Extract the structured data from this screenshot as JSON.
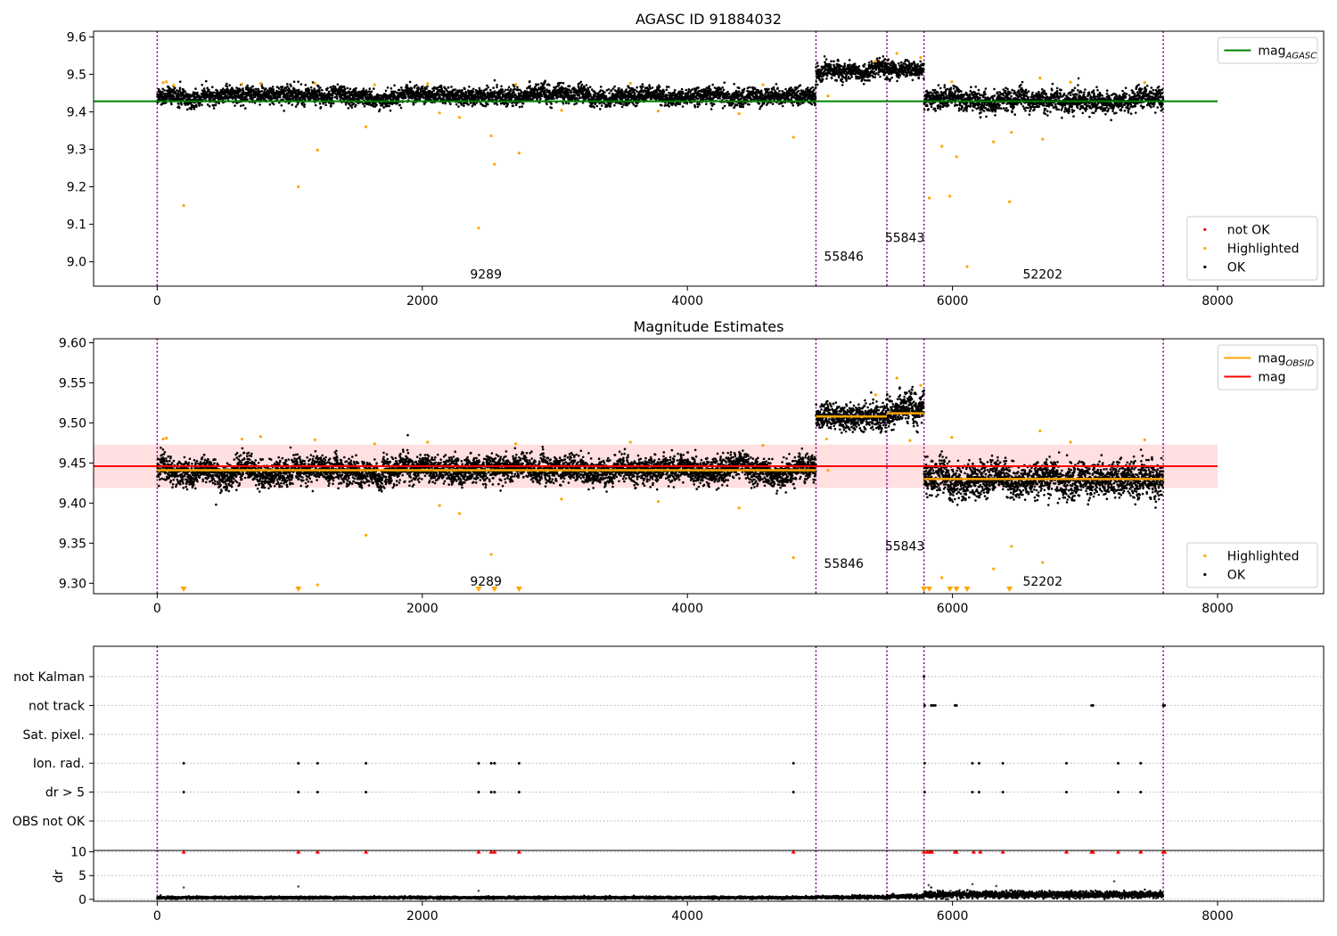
{
  "figure": {
    "background": "#ffffff"
  },
  "colors": {
    "ok": "#000000",
    "highlighted": "#ffa500",
    "not_ok": "#ff0000",
    "agasc_line": "#008000",
    "mag_line": "#ff0000",
    "mag_band": "#ffdfe0",
    "obsid_line": "#ffa500",
    "boundary": "#800080"
  },
  "chart_data": [
    {
      "type": "scatter",
      "title": "AGASC ID 91884032",
      "xlim": [
        -480,
        8800
      ],
      "ylim": [
        8.935,
        9.615
      ],
      "xticks": [
        0,
        2000,
        4000,
        6000,
        8000
      ],
      "xtick_labels": [
        "0",
        "2000",
        "4000",
        "6000",
        "8000"
      ],
      "yticks": [
        9.0,
        9.1,
        9.2,
        9.3,
        9.4,
        9.5,
        9.6
      ],
      "ytick_labels": [
        "9.0",
        "9.1",
        "9.2",
        "9.3",
        "9.4",
        "9.5",
        "9.6"
      ],
      "obsid_boundaries": [
        0,
        4970,
        5505,
        5785,
        7590
      ],
      "obsid_labels": [
        {
          "text": "9289",
          "x": 2480,
          "y": 8.955
        },
        {
          "text": "55846",
          "x": 5180,
          "y": 9.003
        },
        {
          "text": "55843",
          "x": 5640,
          "y": 9.053
        },
        {
          "text": "52202",
          "x": 6680,
          "y": 8.955
        }
      ],
      "hlines": [
        {
          "name": "mag_AGASC",
          "y": 9.428,
          "x": [
            -480,
            8000
          ],
          "color": "#008000"
        }
      ],
      "legend_upper": {
        "placement": "top-right",
        "entries": [
          {
            "label": "mag",
            "sub": "AGASC",
            "color": "#008000",
            "kind": "line"
          }
        ]
      },
      "legend_lower": {
        "placement": "bottom-right",
        "entries": [
          {
            "label": "not OK",
            "color": "#ff0000",
            "kind": "dot"
          },
          {
            "label": "Highlighted",
            "color": "#ffa500",
            "kind": "dot"
          },
          {
            "label": "OK",
            "color": "#000000",
            "kind": "dot"
          }
        ]
      },
      "segments": [
        {
          "x": [
            0,
            4970
          ],
          "center": 9.442,
          "spread": 0.014
        },
        {
          "x": [
            4970,
            5505
          ],
          "center": 9.51,
          "spread": 0.014
        },
        {
          "x": [
            5505,
            5785
          ],
          "center": 9.515,
          "spread": 0.015
        },
        {
          "x": [
            5785,
            7590
          ],
          "center": 9.428,
          "spread": 0.017
        }
      ],
      "highlighted_points": [
        [
          200,
          9.15
        ],
        [
          1065,
          9.2
        ],
        [
          1210,
          9.298
        ],
        [
          1575,
          9.36
        ],
        [
          2425,
          9.09
        ],
        [
          2520,
          9.336
        ],
        [
          2545,
          9.26
        ],
        [
          2730,
          9.29
        ],
        [
          4800,
          9.332
        ],
        [
          5825,
          9.17
        ],
        [
          5920,
          9.308
        ],
        [
          5980,
          9.175
        ],
        [
          6030,
          9.28
        ],
        [
          6110,
          8.987
        ],
        [
          6310,
          9.32
        ],
        [
          6430,
          9.16
        ],
        [
          6445,
          9.345
        ],
        [
          6680,
          9.327
        ],
        [
          2130,
          9.397
        ],
        [
          2280,
          9.385
        ],
        [
          3050,
          9.404
        ],
        [
          3780,
          9.402
        ],
        [
          4390,
          9.395
        ],
        [
          5060,
          9.442
        ],
        [
          5995,
          9.48
        ],
        [
          6660,
          9.49
        ],
        [
          45,
          9.478
        ],
        [
          70,
          9.48
        ],
        [
          125,
          9.471
        ],
        [
          640,
          9.474
        ],
        [
          780,
          9.476
        ],
        [
          1190,
          9.476
        ],
        [
          1640,
          9.472
        ],
        [
          2040,
          9.475
        ],
        [
          2705,
          9.473
        ],
        [
          3570,
          9.476
        ],
        [
          4570,
          9.472
        ],
        [
          6890,
          9.479
        ],
        [
          7450,
          9.478
        ],
        [
          5580,
          9.556
        ],
        [
          5420,
          9.535
        ],
        [
          5760,
          9.545
        ]
      ]
    },
    {
      "type": "scatter",
      "title": "Magnitude Estimates",
      "xlim": [
        -480,
        8800
      ],
      "ylim": [
        9.287,
        9.605
      ],
      "xticks": [
        0,
        2000,
        4000,
        6000,
        8000
      ],
      "xtick_labels": [
        "0",
        "2000",
        "4000",
        "6000",
        "8000"
      ],
      "yticks": [
        9.3,
        9.35,
        9.4,
        9.45,
        9.5,
        9.55,
        9.6
      ],
      "ytick_labels": [
        "9.30",
        "9.35",
        "9.40",
        "9.45",
        "9.50",
        "9.55",
        "9.60"
      ],
      "obsid_boundaries": [
        0,
        4970,
        5505,
        5785,
        7590
      ],
      "obsid_labels": [
        {
          "text": "9289",
          "x": 2480,
          "y": 9.297
        },
        {
          "text": "55846",
          "x": 5180,
          "y": 9.319
        },
        {
          "text": "55843",
          "x": 5640,
          "y": 9.341
        },
        {
          "text": "52202",
          "x": 6680,
          "y": 9.297
        }
      ],
      "mag": {
        "value": 9.446,
        "band": [
          9.419,
          9.473
        ],
        "x": [
          -480,
          8000
        ]
      },
      "obsid_mags": [
        {
          "x": [
            0,
            4970
          ],
          "value": 9.441
        },
        {
          "x": [
            4970,
            5505
          ],
          "value": 9.508
        },
        {
          "x": [
            5505,
            5785
          ],
          "value": 9.512
        },
        {
          "x": [
            5785,
            7590
          ],
          "value": 9.43
        }
      ],
      "legend_upper": {
        "placement": "top-right",
        "entries": [
          {
            "label": "mag",
            "sub": "OBSID",
            "color": "#ffa500",
            "kind": "line"
          },
          {
            "label": "mag",
            "sub": "",
            "color": "#ff0000",
            "kind": "line"
          }
        ]
      },
      "legend_lower": {
        "placement": "bottom-right",
        "entries": [
          {
            "label": "Highlighted",
            "color": "#ffa500",
            "kind": "dot"
          },
          {
            "label": "OK",
            "color": "#000000",
            "kind": "dot"
          }
        ]
      },
      "segments": [
        {
          "x": [
            0,
            4970
          ],
          "center": 9.441,
          "spread": 0.01
        },
        {
          "x": [
            4970,
            5505
          ],
          "center": 9.508,
          "spread": 0.01
        },
        {
          "x": [
            5505,
            5785
          ],
          "center": 9.513,
          "spread": 0.011
        },
        {
          "x": [
            5785,
            7590
          ],
          "center": 9.43,
          "spread": 0.013
        }
      ],
      "highlighted_points": [
        [
          1210,
          9.298
        ],
        [
          1575,
          9.36
        ],
        [
          2520,
          9.336
        ],
        [
          4800,
          9.332
        ],
        [
          5920,
          9.307
        ],
        [
          6310,
          9.318
        ],
        [
          6445,
          9.346
        ],
        [
          6680,
          9.326
        ],
        [
          2130,
          9.397
        ],
        [
          2280,
          9.387
        ],
        [
          3050,
          9.405
        ],
        [
          3780,
          9.402
        ],
        [
          4390,
          9.394
        ],
        [
          5060,
          9.441
        ],
        [
          5995,
          9.482
        ],
        [
          6660,
          9.49
        ],
        [
          45,
          9.48
        ],
        [
          70,
          9.481
        ],
        [
          640,
          9.48
        ],
        [
          780,
          9.483
        ],
        [
          1190,
          9.479
        ],
        [
          1640,
          9.474
        ],
        [
          2040,
          9.476
        ],
        [
          2705,
          9.474
        ],
        [
          3570,
          9.476
        ],
        [
          4570,
          9.472
        ],
        [
          6890,
          9.476
        ],
        [
          7450,
          9.479
        ],
        [
          5580,
          9.556
        ],
        [
          5420,
          9.535
        ],
        [
          5760,
          9.547
        ],
        [
          5050,
          9.48
        ],
        [
          5680,
          9.478
        ]
      ],
      "clipped_low_points": [
        200,
        1065,
        2425,
        2545,
        2730,
        5785,
        5825,
        5980,
        6030,
        6110,
        6430
      ]
    },
    {
      "type": "scatter",
      "title": "",
      "xlim": [
        -480,
        8800
      ],
      "categories": [
        "not Kalman",
        "not track",
        "Sat. pixel.",
        "Ion. rad.",
        "dr > 5",
        "OBS not OK"
      ],
      "flags": {
        "not Kalman": [
          5785
        ],
        "not track": [
          5790,
          5840,
          5855,
          5870,
          6020,
          6030,
          7050,
          7060,
          7590,
          7595,
          7600
        ],
        "Sat. pixel.": [],
        "Ion. rad.": [
          200,
          1065,
          1210,
          1575,
          2425,
          2520,
          2545,
          2730,
          4800,
          5790,
          6150,
          6200,
          6380,
          6860,
          7250,
          7420
        ],
        "dr > 5": [
          200,
          1065,
          1210,
          1575,
          2425,
          2520,
          2545,
          2730,
          4800,
          5790,
          6150,
          6200,
          6380,
          6860,
          7250,
          7420
        ],
        "OBS not OK": []
      }
    },
    {
      "type": "scatter",
      "title": "",
      "xlim": [
        -480,
        8800
      ],
      "ylim": [
        -0.4,
        10.3
      ],
      "ylabel": "dr",
      "xticks": [
        0,
        2000,
        4000,
        6000,
        8000
      ],
      "xtick_labels": [
        "0",
        "2000",
        "4000",
        "6000",
        "8000"
      ],
      "yticks": [
        0,
        5,
        10
      ],
      "ytick_labels": [
        "0",
        "5",
        "10"
      ],
      "clipped_high_points": [
        200,
        1065,
        1210,
        1575,
        2425,
        2520,
        2545,
        4800,
        2730,
        5785,
        5810,
        5830,
        5845,
        6020,
        6030,
        6160,
        6210,
        6380,
        6860,
        7050,
        7060,
        7250,
        7420,
        7590,
        7600
      ],
      "outlier_points": [
        [
          200,
          2.5
        ],
        [
          1065,
          2.7
        ],
        [
          2425,
          1.8
        ],
        [
          5820,
          3.0
        ],
        [
          6150,
          3.2
        ],
        [
          6330,
          2.8
        ],
        [
          7220,
          3.8
        ],
        [
          5985,
          1.8
        ]
      ],
      "segments": [
        {
          "x": [
            0,
            4970
          ],
          "center": 0.35,
          "spread": 0.12
        },
        {
          "x": [
            4970,
            5505
          ],
          "center": 0.45,
          "spread": 0.15
        },
        {
          "x": [
            5505,
            5785
          ],
          "center": 0.6,
          "spread": 0.2
        },
        {
          "x": [
            5785,
            7590
          ],
          "center": 1.0,
          "spread": 0.35
        }
      ]
    }
  ]
}
